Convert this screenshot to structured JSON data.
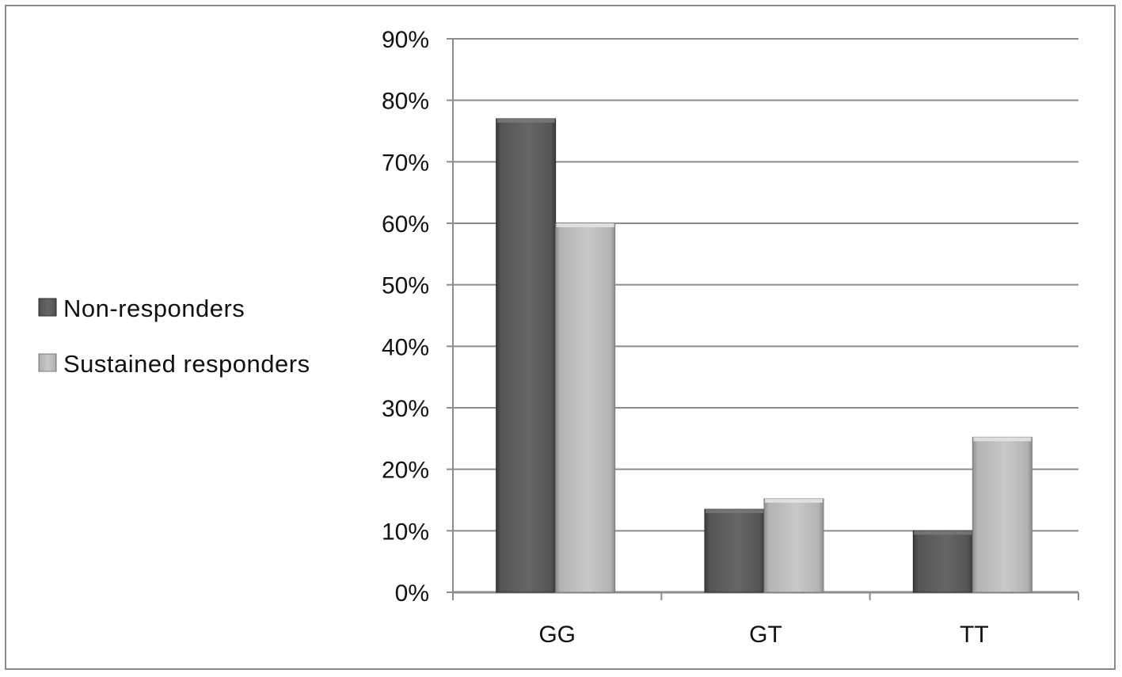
{
  "chart_data": {
    "type": "bar",
    "categories": [
      "GG",
      "GT",
      "TT"
    ],
    "series": [
      {
        "name": "Non-responders",
        "values": [
          77,
          13.5,
          10
        ],
        "color": "#555555"
      },
      {
        "name": "Sustained responders",
        "values": [
          60,
          15.2,
          25.2
        ],
        "color": "#b3b3b3"
      }
    ],
    "y_ticks": [
      "0%",
      "10%",
      "20%",
      "30%",
      "40%",
      "50%",
      "60%",
      "70%",
      "80%",
      "90%"
    ],
    "ylim": [
      0,
      90
    ],
    "grid": true,
    "legend_position": "left",
    "title": "",
    "xlabel": "",
    "ylabel": ""
  }
}
